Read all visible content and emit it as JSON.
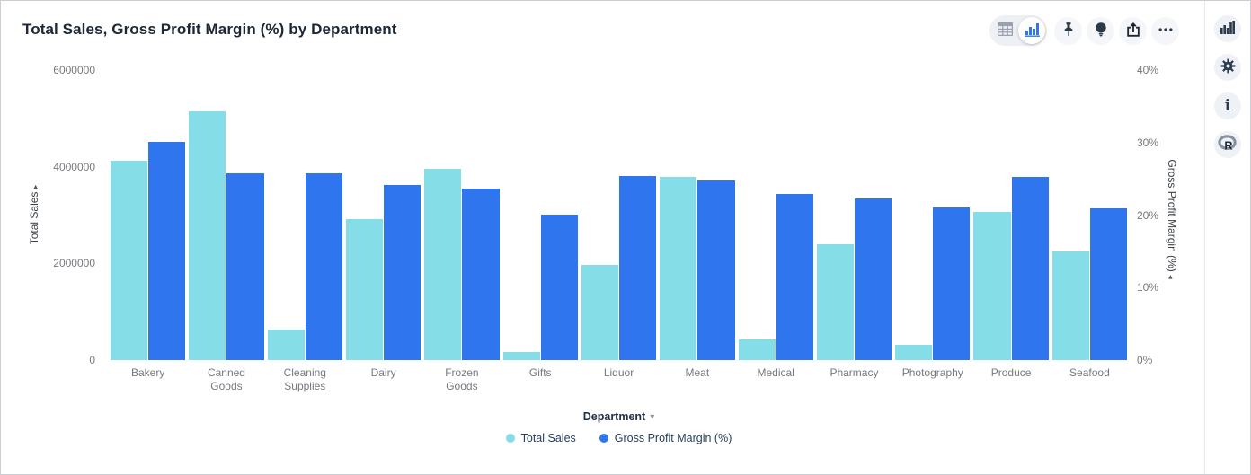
{
  "title": "Total Sales, Gross Profit Margin (%) by Department",
  "toolbar": {
    "table_view": "Table view",
    "chart_view": "Chart view",
    "pin": "Pin",
    "insights": "Insights",
    "share": "Share",
    "more": "More options"
  },
  "sidebar": {
    "chart_config": "Chart configuration",
    "settings": "Settings",
    "info": "Info",
    "r_analysis": "R analysis"
  },
  "colors": {
    "sales": "#85DEE7",
    "gpm": "#2F76EE",
    "navy_text": "#1d2735",
    "gray_text": "#76797e"
  },
  "chart_data": {
    "type": "bar",
    "title": "Total Sales, Gross Profit Margin (%) by Department",
    "categories": [
      "Bakery",
      "Canned Goods",
      "Cleaning Supplies",
      "Dairy",
      "Frozen Goods",
      "Gifts",
      "Liquor",
      "Meat",
      "Medical",
      "Pharmacy",
      "Photography",
      "Produce",
      "Seafood"
    ],
    "series": [
      {
        "name": "Total Sales",
        "axis": "left",
        "color": "#85DEE7",
        "values": [
          4130000,
          5140000,
          630000,
          2910000,
          3960000,
          170000,
          1970000,
          3790000,
          430000,
          2400000,
          320000,
          3060000,
          2250000
        ]
      },
      {
        "name": "Gross Profit Margin (%)",
        "axis": "right",
        "color": "#2F76EE",
        "values": [
          30.1,
          25.8,
          25.7,
          24.2,
          23.6,
          20.1,
          25.4,
          24.8,
          22.9,
          22.3,
          21.1,
          25.3,
          20.9
        ]
      }
    ],
    "left_axis": {
      "label": "Total Sales",
      "min": 0,
      "max": 6000000,
      "ticks": [
        {
          "label": "6000000",
          "value": 6000000
        },
        {
          "label": "4000000",
          "value": 4000000
        },
        {
          "label": "2000000",
          "value": 2000000
        },
        {
          "label": "0",
          "value": 0
        }
      ]
    },
    "right_axis": {
      "label": "Gross Profit Margin (%)",
      "min": 0,
      "max": 40,
      "ticks": [
        {
          "label": "40%",
          "value": 40
        },
        {
          "label": "30%",
          "value": 30
        },
        {
          "label": "20%",
          "value": 20
        },
        {
          "label": "10%",
          "value": 10
        },
        {
          "label": "0%",
          "value": 0
        }
      ]
    },
    "x_axis": {
      "label": "Department"
    },
    "legend_position": "bottom",
    "grid": false
  },
  "legend": {
    "items": [
      {
        "label": "Total Sales",
        "color": "#85DEE7"
      },
      {
        "label": "Gross Profit Margin (%)",
        "color": "#2F76EE"
      }
    ]
  }
}
